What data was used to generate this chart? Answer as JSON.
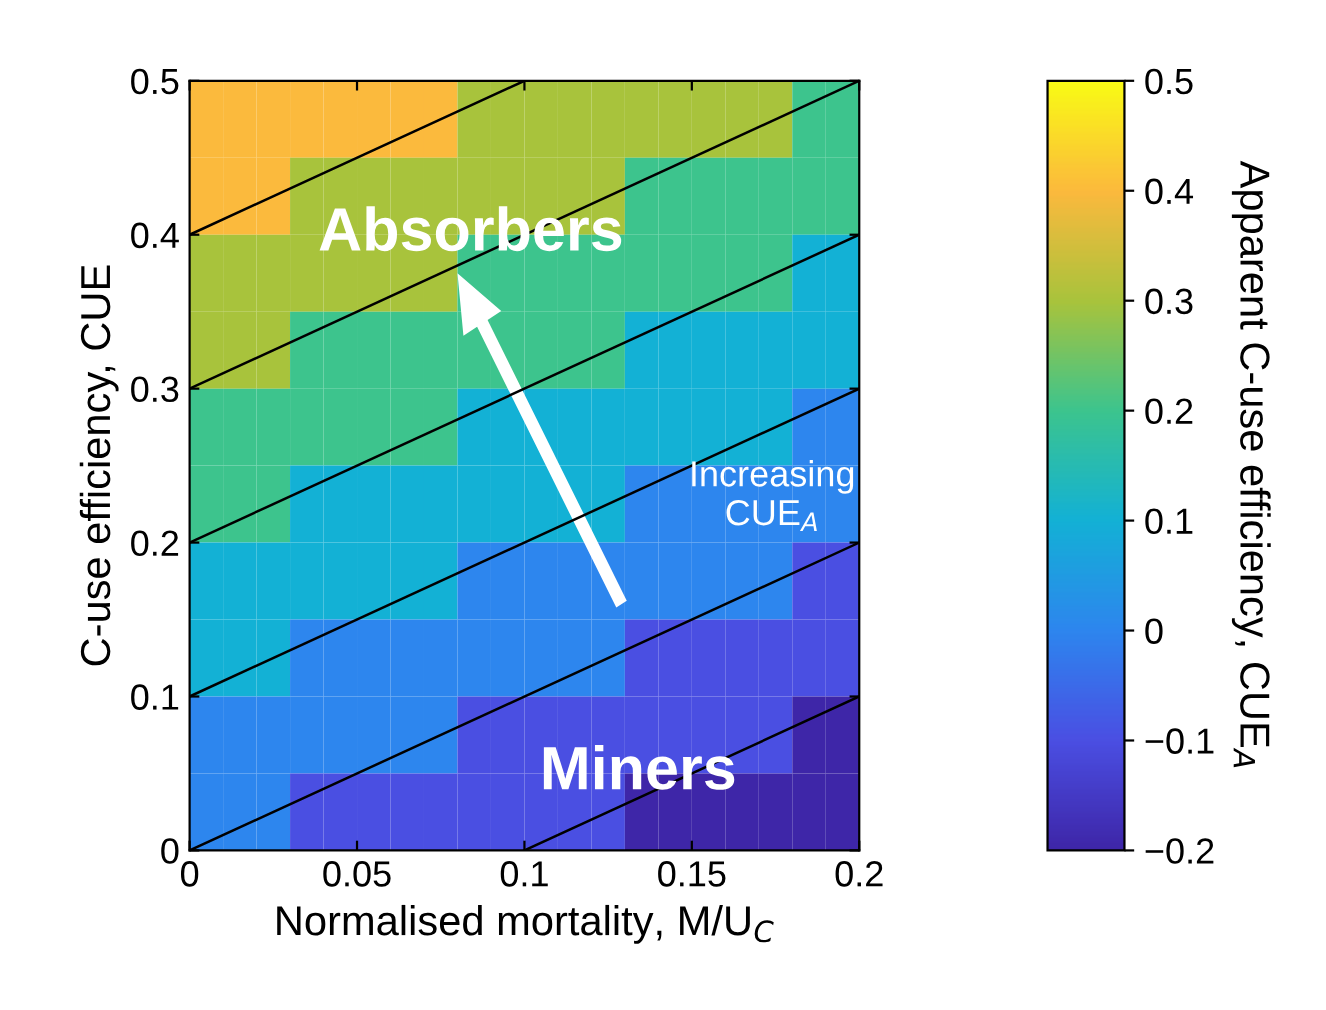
{
  "chart_data": {
    "type": "heatmap",
    "xlabel": "Normalised mortality, M/U$_{C}$",
    "ylabel": "C-use efficiency, CUE",
    "clabel": "Apparent C-use efficiency, CUE$_{A}$",
    "x": [
      0.005,
      0.015,
      0.025,
      0.035,
      0.045,
      0.055,
      0.065,
      0.075,
      0.085,
      0.095,
      0.105,
      0.115,
      0.125,
      0.135,
      0.145,
      0.155,
      0.165,
      0.175,
      0.185,
      0.195
    ],
    "y": [
      0.475,
      0.425,
      0.375,
      0.325,
      0.275,
      0.225,
      0.175,
      0.125,
      0.075,
      0.025
    ],
    "cells": [
      [
        0.4,
        0.4,
        0.4,
        0.4,
        0.4,
        0.4,
        0.4,
        0.4,
        0.3,
        0.3,
        0.3,
        0.3,
        0.3,
        0.3,
        0.3,
        0.3,
        0.3,
        0.3,
        0.2,
        0.2
      ],
      [
        0.4,
        0.4,
        0.4,
        0.3,
        0.3,
        0.3,
        0.3,
        0.3,
        0.3,
        0.3,
        0.3,
        0.3,
        0.3,
        0.2,
        0.2,
        0.2,
        0.2,
        0.2,
        0.2,
        0.2
      ],
      [
        0.3,
        0.3,
        0.3,
        0.3,
        0.3,
        0.3,
        0.3,
        0.3,
        0.2,
        0.2,
        0.2,
        0.2,
        0.2,
        0.2,
        0.2,
        0.2,
        0.2,
        0.2,
        0.1,
        0.1
      ],
      [
        0.3,
        0.3,
        0.3,
        0.2,
        0.2,
        0.2,
        0.2,
        0.2,
        0.2,
        0.2,
        0.2,
        0.2,
        0.2,
        0.1,
        0.1,
        0.1,
        0.1,
        0.1,
        0.1,
        0.1
      ],
      [
        0.2,
        0.2,
        0.2,
        0.2,
        0.2,
        0.2,
        0.2,
        0.2,
        0.1,
        0.1,
        0.1,
        0.1,
        0.1,
        0.1,
        0.1,
        0.1,
        0.1,
        0.1,
        0,
        0
      ],
      [
        0.2,
        0.2,
        0.2,
        0.1,
        0.1,
        0.1,
        0.1,
        0.1,
        0.1,
        0.1,
        0.1,
        0.1,
        0.1,
        0,
        0,
        0,
        0,
        0,
        0,
        0
      ],
      [
        0.1,
        0.1,
        0.1,
        0.1,
        0.1,
        0.1,
        0.1,
        0.1,
        0,
        0,
        0,
        0,
        0,
        0,
        0,
        0,
        0,
        0,
        -0.1,
        -0.1
      ],
      [
        0.1,
        0.1,
        0.1,
        0,
        0,
        0,
        0,
        0,
        0,
        0,
        0,
        0,
        0,
        -0.1,
        -0.1,
        -0.1,
        -0.1,
        -0.1,
        -0.1,
        -0.1
      ],
      [
        0,
        0,
        0,
        0,
        0,
        0,
        0,
        0,
        -0.1,
        -0.1,
        -0.1,
        -0.1,
        -0.1,
        -0.1,
        -0.1,
        -0.1,
        -0.1,
        -0.1,
        -0.2,
        -0.2
      ],
      [
        0,
        0,
        0,
        -0.1,
        -0.1,
        -0.1,
        -0.1,
        -0.1,
        -0.1,
        -0.1,
        -0.1,
        -0.1,
        -0.1,
        -0.2,
        -0.2,
        -0.2,
        -0.2,
        -0.2,
        -0.2,
        -0.2
      ]
    ],
    "series": [
      {
        "type": "line",
        "color": "#000000",
        "x": [
          0.1,
          0.2
        ],
        "values": [
          0,
          0.1
        ]
      },
      {
        "type": "line",
        "color": "#000000",
        "x": [
          0,
          0.2
        ],
        "values": [
          0,
          0.2
        ]
      },
      {
        "type": "line",
        "color": "#000000",
        "x": [
          0,
          0.2
        ],
        "values": [
          0.1,
          0.3
        ]
      },
      {
        "type": "line",
        "color": "#000000",
        "x": [
          0,
          0.2
        ],
        "values": [
          0.2,
          0.4
        ]
      },
      {
        "type": "line",
        "color": "#000000",
        "x": [
          0,
          0.2
        ],
        "values": [
          0.3,
          0.5
        ]
      },
      {
        "type": "line",
        "color": "#000000",
        "x": [
          0,
          0.1
        ],
        "values": [
          0.4,
          0.5
        ]
      }
    ],
    "colors": [
      "#3e26a8",
      "#4a4fe3",
      "#2d86ee",
      "#13b1d5",
      "#3cc48e",
      "#a8c33c",
      "#fbb93d",
      "#f9fb15"
    ],
    "clim": [
      -0.2,
      0.5
    ],
    "cticks": [
      -0.2,
      -0.1,
      0,
      0.1,
      0.2,
      0.3,
      0.4,
      0.5
    ],
    "xlim": [
      0,
      0.2
    ],
    "xticks": [
      0,
      0.05,
      0.1,
      0.15,
      0.2
    ],
    "ylim": [
      0,
      0.5
    ],
    "yticks": [
      0,
      0.1,
      0.2,
      0.3,
      0.4,
      0.5
    ],
    "annotations": [
      "Absorbers",
      "Increasing\nCUE$_{A}$",
      "Miners"
    ]
  }
}
